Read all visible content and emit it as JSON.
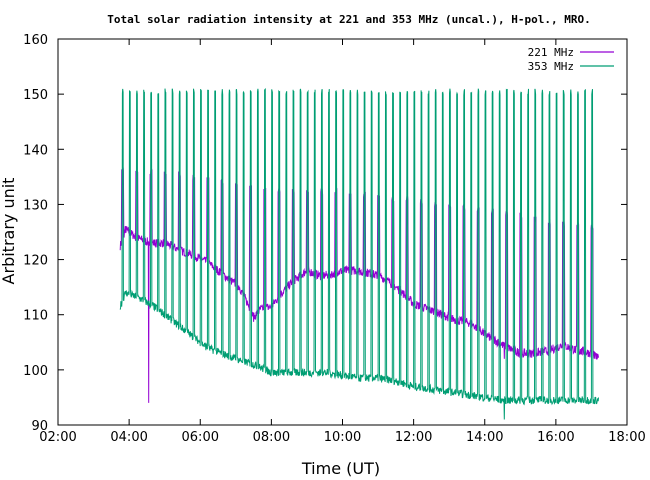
{
  "chart_data": {
    "type": "line",
    "title": "Total solar radiation intensity at 221 and 353 MHz (uncal.), H-pol., MRO.",
    "xlabel": "Time (UT)",
    "ylabel": "Arbitrary unit",
    "xlim": [
      2,
      18
    ],
    "ylim": [
      90,
      160
    ],
    "xticks": [
      2,
      4,
      6,
      8,
      10,
      12,
      14,
      16,
      18
    ],
    "xtick_labels": [
      "02:00",
      "04:00",
      "06:00",
      "08:00",
      "10:00",
      "12:00",
      "14:00",
      "16:00",
      "18:00"
    ],
    "yticks": [
      90,
      100,
      110,
      120,
      130,
      140,
      150,
      160
    ],
    "ytick_labels": [
      "90",
      "100",
      "110",
      "120",
      "130",
      "140",
      "150",
      "160"
    ],
    "legend_position": "top-right",
    "grid": false,
    "series": [
      {
        "name": "221 MHz",
        "color": "#9400d3",
        "baseline": {
          "x": [
            3.75,
            3.9,
            4.2,
            4.6,
            5.0,
            5.5,
            5.9,
            6.2,
            6.6,
            6.9,
            7.1,
            7.3,
            7.5,
            7.7,
            8.0,
            8.3,
            8.6,
            9.0,
            9.4,
            9.8,
            10.0,
            10.4,
            10.8,
            11.2,
            11.6,
            12.0,
            12.4,
            12.8,
            13.2,
            13.6,
            14.0,
            14.5,
            15.0,
            15.4,
            15.8,
            16.2,
            16.6,
            17.0,
            17.2
          ],
          "y": [
            122.5,
            125.5,
            124,
            123,
            123,
            121.5,
            120.5,
            119.5,
            117.5,
            116,
            115,
            112.5,
            109.5,
            111,
            111.5,
            114,
            116,
            118,
            117,
            117.5,
            118,
            118,
            117.5,
            116.5,
            114.5,
            112,
            111,
            110,
            109,
            108.5,
            106.5,
            104.5,
            103,
            103,
            103.5,
            104.5,
            103.5,
            103,
            102
          ]
        },
        "calibration_times": [
          3.78,
          4.18,
          4.58,
          4.98,
          5.38,
          5.78,
          6.18,
          6.58,
          6.98,
          7.38,
          7.78,
          8.18,
          8.58,
          8.98,
          9.38,
          9.78,
          10.18,
          10.58,
          10.98,
          11.38,
          11.78,
          12.18,
          12.58,
          12.98,
          13.38,
          13.78,
          14.18,
          14.58,
          14.98,
          15.38,
          15.78,
          16.18,
          16.58,
          16.98
        ],
        "calibration_peaks": [
          137,
          136.5,
          136.5,
          136,
          136,
          135.5,
          135,
          134.5,
          134,
          133.5,
          133,
          133,
          133,
          133,
          133,
          133,
          132.5,
          132.5,
          132,
          131.5,
          131.5,
          131,
          130.5,
          130.5,
          130,
          129.5,
          129.5,
          129,
          128.5,
          128,
          127.5,
          127,
          127,
          126.5
        ],
        "dips": [
          {
            "x": 4.55,
            "y": 94
          },
          {
            "x": 14.55,
            "y": 102
          }
        ]
      },
      {
        "name": "353 MHz",
        "color": "#009e73",
        "baseline": {
          "x": [
            3.75,
            3.9,
            4.3,
            4.7,
            5.0,
            5.4,
            5.8,
            6.2,
            6.6,
            7.0,
            7.5,
            8.0,
            8.5,
            9.0,
            9.5,
            10.0,
            10.5,
            11.0,
            11.5,
            12.0,
            12.5,
            13.0,
            13.5,
            14.0,
            14.5,
            15.0,
            15.5,
            16.0,
            16.5,
            17.0,
            17.2
          ],
          "y": [
            111.5,
            114,
            113,
            111.5,
            110,
            108,
            106,
            104,
            103,
            102,
            101,
            99.5,
            99.5,
            99.5,
            99.5,
            99,
            98.5,
            98.5,
            98,
            97,
            96.5,
            96,
            95.5,
            95,
            94.5,
            94.5,
            94.5,
            94.5,
            94.5,
            94.5,
            94.5
          ]
        },
        "calibration_times": [
          3.8,
          4.0,
          4.2,
          4.4,
          4.6,
          4.8,
          5.0,
          5.2,
          5.4,
          5.6,
          5.8,
          6.0,
          6.2,
          6.4,
          6.6,
          6.8,
          7.0,
          7.2,
          7.4,
          7.6,
          7.8,
          8.0,
          8.2,
          8.4,
          8.6,
          8.8,
          9.0,
          9.2,
          9.4,
          9.6,
          9.8,
          10.0,
          10.2,
          10.4,
          10.6,
          10.8,
          11.0,
          11.2,
          11.4,
          11.6,
          11.8,
          12.0,
          12.2,
          12.4,
          12.6,
          12.8,
          13.0,
          13.2,
          13.4,
          13.6,
          13.8,
          14.0,
          14.2,
          14.4,
          14.6,
          14.8,
          15.0,
          15.2,
          15.4,
          15.6,
          15.8,
          16.0,
          16.2,
          16.4,
          16.6,
          16.8,
          17.0
        ],
        "calibration_peak": 151,
        "dips": [
          {
            "x": 14.55,
            "y": 91
          }
        ]
      }
    ]
  }
}
